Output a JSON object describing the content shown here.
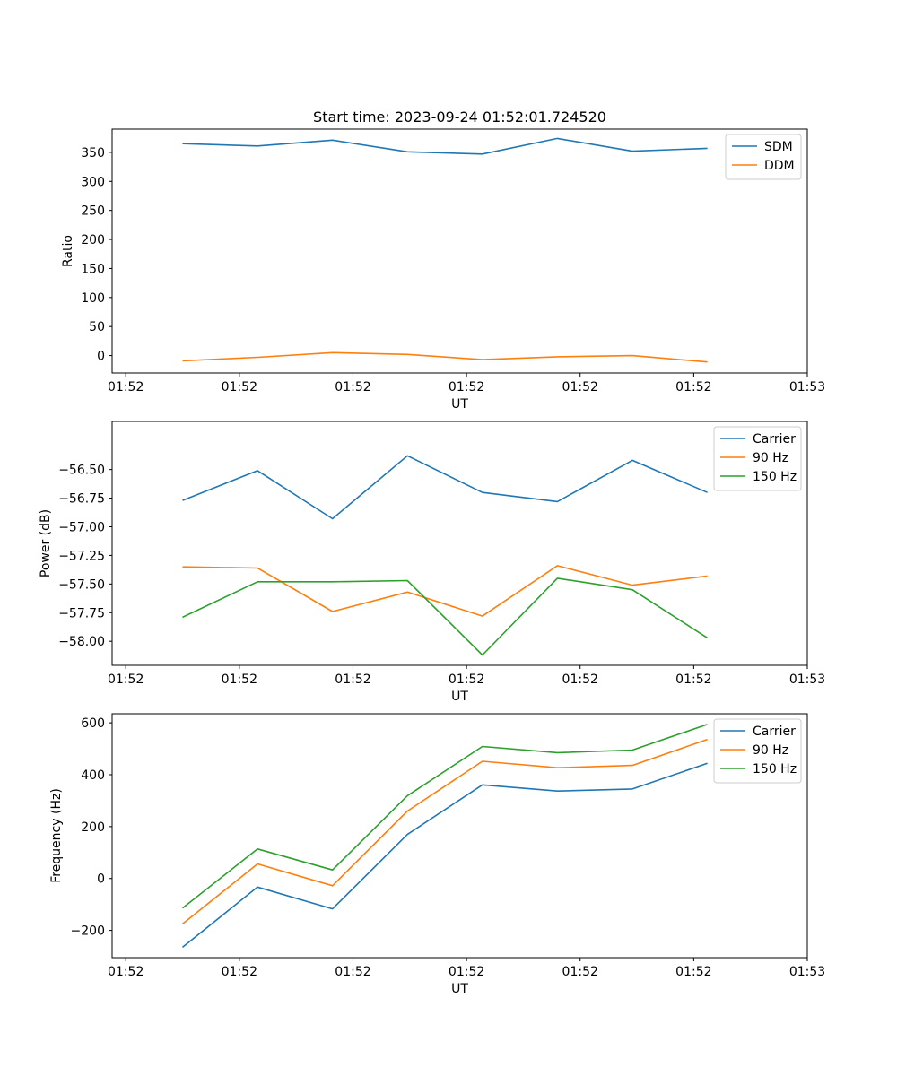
{
  "chart_data": [
    {
      "type": "line",
      "title": "Start time: 2023-09-24 01:52:01.724520",
      "xlabel": "UT",
      "ylabel": "Ratio",
      "xlim": [
        -0.06,
        3.0
      ],
      "ylim": [
        -30,
        390
      ],
      "x": [
        0.25,
        0.58,
        0.91,
        1.24,
        1.57,
        1.9,
        2.23,
        2.56
      ],
      "xticks": [
        0,
        0.5,
        1.0,
        1.5,
        2.0,
        2.5,
        3.0
      ],
      "xtick_labels": [
        "01:52",
        "01:52",
        "01:52",
        "01:52",
        "01:52",
        "01:52",
        "01:53"
      ],
      "yticks": [
        0,
        50,
        100,
        150,
        200,
        250,
        300,
        350
      ],
      "ytick_labels": [
        "0",
        "50",
        "100",
        "150",
        "200",
        "250",
        "300",
        "350"
      ],
      "series": [
        {
          "name": "SDM",
          "color": "#1f77b4",
          "values": [
            365,
            361,
            371,
            351,
            347,
            374,
            352,
            357
          ]
        },
        {
          "name": "DDM",
          "color": "#ff7f0e",
          "values": [
            -9,
            -3,
            5,
            2,
            -7,
            -2,
            0,
            -11
          ]
        }
      ],
      "legend": "top-right"
    },
    {
      "type": "line",
      "title": "",
      "xlabel": "UT",
      "ylabel": "Power (dB)",
      "xlim": [
        -0.06,
        3.0
      ],
      "ylim": [
        -58.21,
        -56.08
      ],
      "x": [
        0.25,
        0.58,
        0.91,
        1.24,
        1.57,
        1.9,
        2.23,
        2.56
      ],
      "xticks": [
        0,
        0.5,
        1.0,
        1.5,
        2.0,
        2.5,
        3.0
      ],
      "xtick_labels": [
        "01:52",
        "01:52",
        "01:52",
        "01:52",
        "01:52",
        "01:52",
        "01:53"
      ],
      "yticks": [
        -58.0,
        -57.75,
        -57.5,
        -57.25,
        -57.0,
        -56.75,
        -56.5
      ],
      "ytick_labels": [
        "−58.00",
        "−57.75",
        "−57.50",
        "−57.25",
        "−57.00",
        "−56.75",
        "−56.50"
      ],
      "series": [
        {
          "name": "Carrier",
          "color": "#1f77b4",
          "values": [
            -56.77,
            -56.51,
            -56.93,
            -56.38,
            -56.7,
            -56.78,
            -56.42,
            -56.7
          ]
        },
        {
          "name": "90 Hz",
          "color": "#ff7f0e",
          "values": [
            -57.35,
            -57.36,
            -57.74,
            -57.57,
            -57.78,
            -57.34,
            -57.51,
            -57.43
          ]
        },
        {
          "name": "150 Hz",
          "color": "#2ca02c",
          "values": [
            -57.79,
            -57.48,
            -57.48,
            -57.47,
            -58.12,
            -57.45,
            -57.55,
            -57.97
          ]
        }
      ],
      "legend": "top-right"
    },
    {
      "type": "line",
      "title": "",
      "xlabel": "UT",
      "ylabel": "Frequency (Hz)",
      "xlim": [
        -0.06,
        3.0
      ],
      "ylim": [
        -305,
        635
      ],
      "x": [
        0.25,
        0.58,
        0.91,
        1.24,
        1.57,
        1.9,
        2.23,
        2.56
      ],
      "xticks": [
        0,
        0.5,
        1.0,
        1.5,
        2.0,
        2.5,
        3.0
      ],
      "xtick_labels": [
        "01:52",
        "01:52",
        "01:52",
        "01:52",
        "01:52",
        "01:52",
        "01:53"
      ],
      "yticks": [
        -200,
        0,
        200,
        400,
        600
      ],
      "ytick_labels": [
        "−200",
        "0",
        "200",
        "400",
        "600"
      ],
      "series": [
        {
          "name": "Carrier",
          "color": "#1f77b4",
          "values": [
            -265,
            -33,
            -117,
            170,
            361,
            337,
            345,
            444
          ]
        },
        {
          "name": "90 Hz",
          "color": "#ff7f0e",
          "values": [
            -175,
            56,
            -28,
            260,
            452,
            427,
            436,
            536
          ]
        },
        {
          "name": "150 Hz",
          "color": "#2ca02c",
          "values": [
            -114,
            114,
            33,
            319,
            509,
            485,
            495,
            594
          ]
        }
      ],
      "legend": "top-right"
    }
  ]
}
